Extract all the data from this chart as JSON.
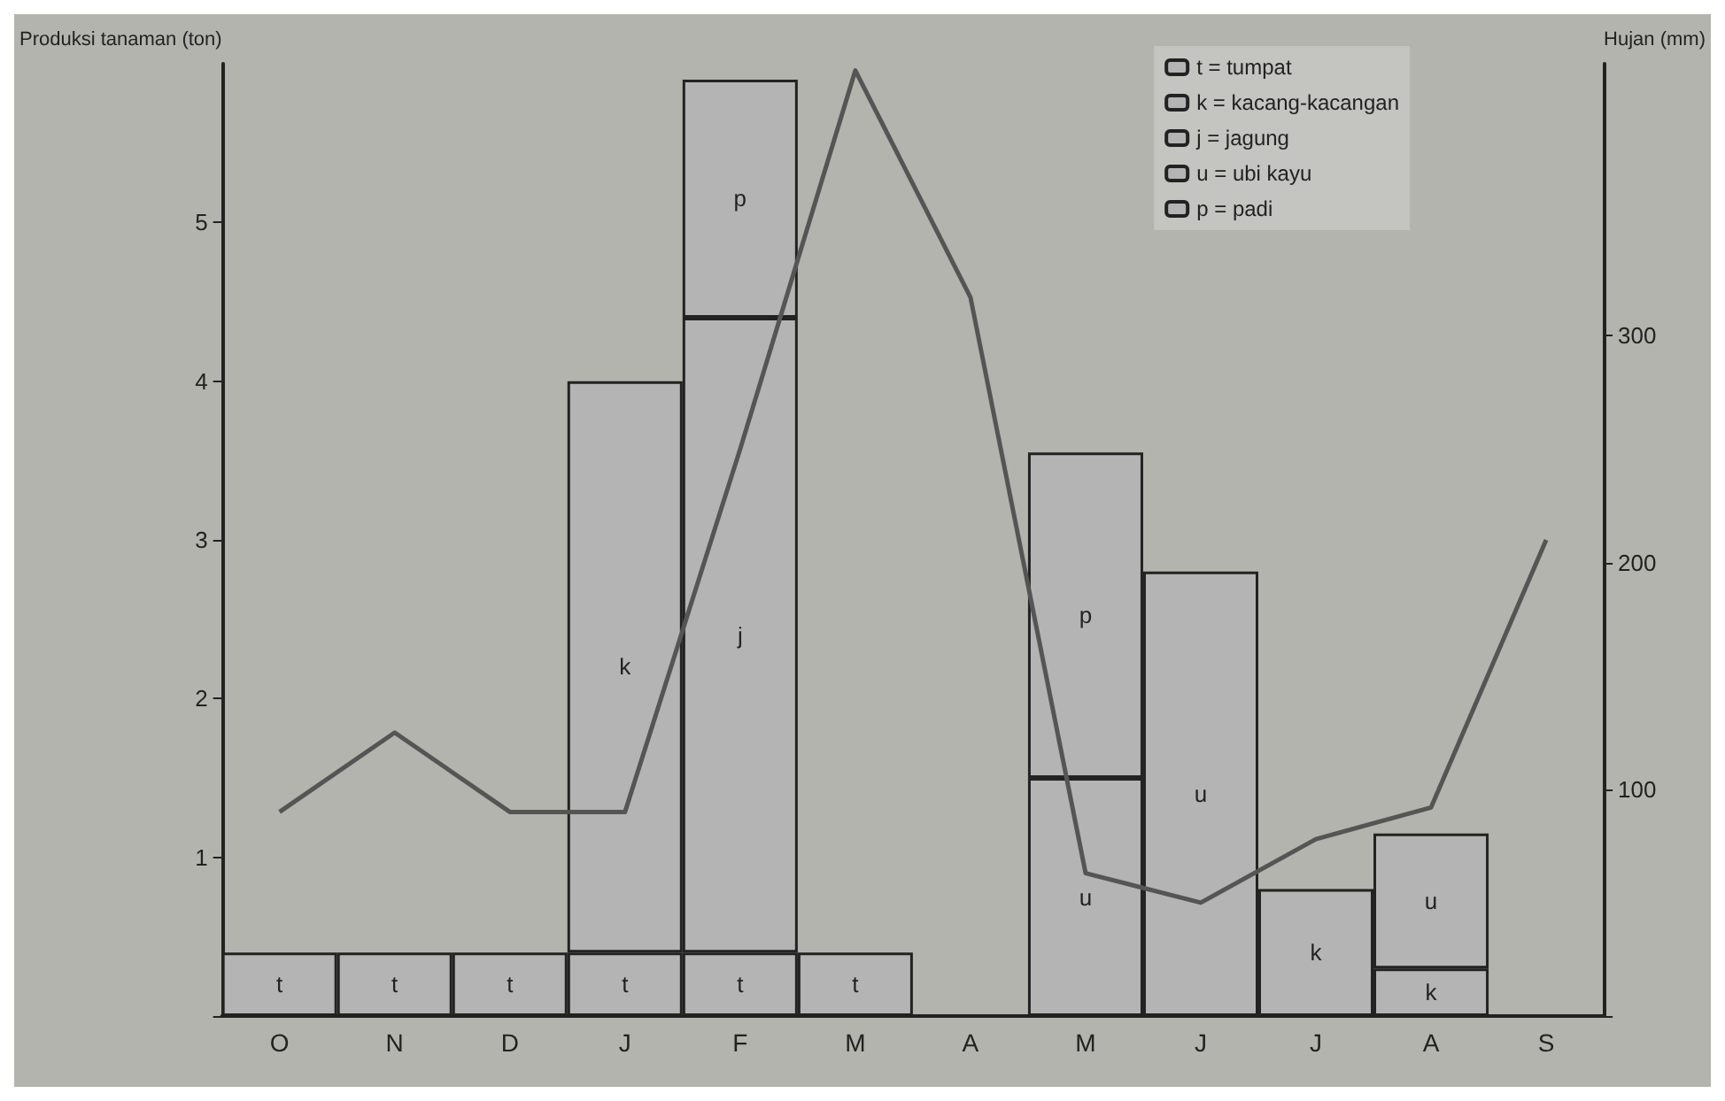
{
  "chart_data": {
    "type": "bar",
    "stacked": true,
    "ylabel": "Produksi tanaman (ton)",
    "y2label": "Hujan (mm)",
    "categories": [
      "O",
      "N",
      "D",
      "J",
      "F",
      "M",
      "A",
      "M",
      "J",
      "J",
      "A",
      "S"
    ],
    "series": [
      {
        "name": "t = tumpat",
        "color": "#b4b4b4",
        "values": [
          0.4,
          0.4,
          0.4,
          0.4,
          0.4,
          0.4,
          null,
          null,
          null,
          null,
          null,
          null
        ],
        "value_labels": [
          "t",
          "t",
          "t",
          "t",
          "t",
          "t",
          null,
          null,
          null,
          null,
          null,
          null
        ]
      },
      {
        "name": "k = kacang-kacangan",
        "color": "#b4b4b4",
        "values": [
          null,
          null,
          null,
          3.6,
          null,
          null,
          null,
          null,
          null,
          0.8,
          0.3,
          null
        ],
        "value_labels": [
          null,
          null,
          null,
          "k",
          null,
          null,
          null,
          null,
          null,
          "k",
          "k",
          null
        ]
      },
      {
        "name": "j = jagung",
        "color": "#b4b4b4",
        "values": [
          null,
          null,
          null,
          null,
          4.0,
          null,
          null,
          null,
          null,
          null,
          null,
          null
        ],
        "value_labels": [
          null,
          null,
          null,
          null,
          "j",
          null,
          null,
          null,
          null,
          null,
          null,
          null
        ]
      },
      {
        "name": "u = ubi kayu",
        "color": "#b4b4b4",
        "values": [
          null,
          null,
          null,
          null,
          null,
          null,
          null,
          1.5,
          2.8,
          null,
          0.85,
          null
        ],
        "value_labels": [
          null,
          null,
          null,
          null,
          null,
          null,
          null,
          "u",
          "u",
          null,
          "u",
          null
        ]
      },
      {
        "name": "p = padi",
        "color": "#b4b4b4",
        "values": [
          null,
          null,
          null,
          null,
          1.5,
          null,
          null,
          2.05,
          null,
          null,
          null,
          null
        ],
        "value_labels": [
          null,
          null,
          null,
          null,
          "p",
          null,
          null,
          "p",
          null,
          null,
          null,
          null
        ]
      },
      {
        "type": "line",
        "axis": "y2",
        "color": "#555555",
        "values": [
          90,
          125,
          90,
          90,
          250,
          417,
          317,
          63,
          50,
          78,
          92,
          210
        ]
      }
    ],
    "ylim": [
      0,
      6
    ],
    "yticks": [
      {
        "value": 0,
        "label": null
      },
      1,
      2,
      3,
      4,
      5
    ],
    "y2lim": [
      0,
      420
    ],
    "y2ticks": [
      {
        "value": 0,
        "label": null
      },
      100,
      200,
      300
    ],
    "legend": "top right",
    "marker": "none",
    "line_style": "solid"
  }
}
